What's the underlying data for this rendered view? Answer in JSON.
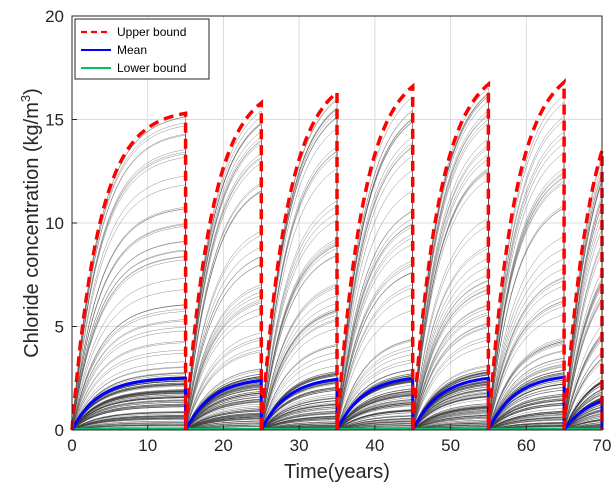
{
  "chart_data": {
    "type": "line",
    "xlabel": "Time(years)",
    "ylabel": "Chloride concentration (kg/m",
    "ylabel_sup": "3",
    "ylabel_close": ")",
    "xlim": [
      0,
      70
    ],
    "ylim": [
      0,
      20
    ],
    "xticks": [
      0,
      10,
      20,
      30,
      40,
      50,
      60,
      70
    ],
    "yticks": [
      0,
      5,
      10,
      15,
      20
    ],
    "xtick_labels": [
      "0",
      "10",
      "20",
      "30",
      "40",
      "50",
      "60",
      "70"
    ],
    "ytick_labels": [
      "0",
      "5",
      "10",
      "15",
      "20"
    ],
    "grid": true,
    "legend_position": "top-left",
    "cycle_starts": [
      0,
      15,
      25,
      35,
      45,
      55,
      65
    ],
    "colors": {
      "upper": "#ff0000",
      "mean": "#0000ff",
      "lower": "#00c060",
      "samples": "#555555"
    },
    "series": [
      {
        "name": "Upper bound",
        "style": "dashed",
        "cycle_peaks": [
          {
            "start": 0,
            "end": 15,
            "peak": 15.3
          },
          {
            "start": 15,
            "end": 25,
            "peak": 15.8
          },
          {
            "start": 25,
            "end": 35,
            "peak": 16.3
          },
          {
            "start": 35,
            "end": 45,
            "peak": 16.6
          },
          {
            "start": 45,
            "end": 55,
            "peak": 16.7
          },
          {
            "start": 55,
            "end": 65,
            "peak": 16.8
          },
          {
            "start": 65,
            "end": 70,
            "peak": 13.5
          }
        ]
      },
      {
        "name": "Mean",
        "style": "solid",
        "cycle_peaks": [
          {
            "start": 0,
            "end": 15,
            "peak": 2.5
          },
          {
            "start": 15,
            "end": 25,
            "peak": 2.4
          },
          {
            "start": 25,
            "end": 35,
            "peak": 2.45
          },
          {
            "start": 35,
            "end": 45,
            "peak": 2.5
          },
          {
            "start": 45,
            "end": 55,
            "peak": 2.5
          },
          {
            "start": 55,
            "end": 65,
            "peak": 2.55
          },
          {
            "start": 65,
            "end": 70,
            "peak": 1.4
          }
        ]
      },
      {
        "name": "Lower bound",
        "style": "solid",
        "value": 0.05
      }
    ]
  }
}
